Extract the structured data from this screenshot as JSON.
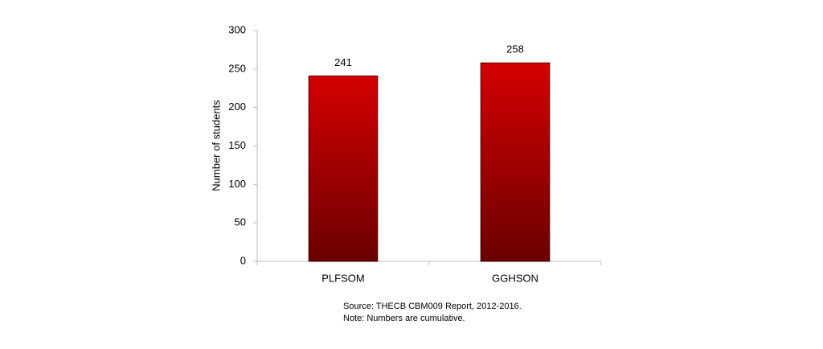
{
  "chart_data": {
    "type": "bar",
    "y_label": "Number of students",
    "categories": [
      "PLFSOM",
      "GGHSON"
    ],
    "values": [
      241,
      258
    ],
    "color": "#d40000",
    "ylim": [
      0,
      300
    ],
    "yticks": [
      0,
      50,
      100,
      150,
      200,
      250,
      300
    ],
    "grid": false,
    "data_labels": true,
    "notes": [
      "Source: THECB CBM009 Report, 2012-2016.",
      "Note: Numbers are cumulative."
    ]
  }
}
